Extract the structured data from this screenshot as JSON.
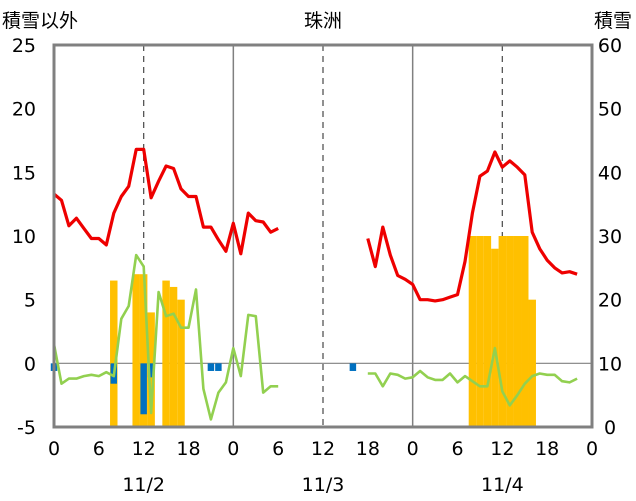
{
  "chart_data": {
    "type": "combo",
    "title": "珠洲",
    "left_axis_label": "積雪以外",
    "right_axis_label": "積雪",
    "left_ylim": [
      -5,
      25
    ],
    "left_yticks": [
      "25",
      "20",
      "15",
      "10",
      "5",
      "0",
      "-5"
    ],
    "right_ylim": [
      0,
      60
    ],
    "right_yticks": [
      "60",
      "50",
      "40",
      "30",
      "20",
      "10",
      "0"
    ],
    "x_range_hours": [
      0,
      72
    ],
    "x_tick_labels": [
      "0",
      "6",
      "12",
      "18",
      "0",
      "6",
      "12",
      "18",
      "0",
      "6",
      "12",
      "18",
      "0"
    ],
    "date_labels": [
      "11/2",
      "11/3",
      "11/4"
    ],
    "grid": "dashed at 12:00, solid at midnight",
    "colors": {
      "red_line": "#ee0000",
      "green_line": "#92d050",
      "yellow_bars": "#ffc000",
      "blue_bars": "#0070c0",
      "frame": "#808080"
    },
    "red_line": [
      [
        0,
        13.3
      ],
      [
        1,
        12.8
      ],
      [
        2,
        10.8
      ],
      [
        3,
        11.4
      ],
      [
        4,
        10.6
      ],
      [
        5,
        9.8
      ],
      [
        6,
        9.8
      ],
      [
        7,
        9.3
      ],
      [
        8,
        11.8
      ],
      [
        9,
        13.1
      ],
      [
        10,
        13.9
      ],
      [
        11,
        16.8
      ],
      [
        12,
        16.8
      ],
      [
        13,
        13.0
      ],
      [
        14,
        14.3
      ],
      [
        15,
        15.5
      ],
      [
        16,
        15.3
      ],
      [
        17,
        13.7
      ],
      [
        18,
        13.1
      ],
      [
        19,
        13.1
      ],
      [
        20,
        10.7
      ],
      [
        21,
        10.7
      ],
      [
        22,
        9.7
      ],
      [
        23,
        8.8
      ],
      [
        24,
        11.0
      ],
      [
        25,
        8.6
      ],
      [
        26,
        11.8
      ],
      [
        27,
        11.2
      ],
      [
        28,
        11.1
      ],
      [
        29,
        10.3
      ],
      [
        30,
        10.6
      ],
      null,
      [
        42,
        9.8
      ],
      [
        43,
        7.6
      ],
      [
        44,
        10.7
      ],
      [
        45,
        8.5
      ],
      [
        46,
        6.9
      ],
      [
        47,
        6.6
      ],
      [
        48,
        6.2
      ],
      [
        49,
        5.0
      ],
      [
        50,
        5.0
      ],
      [
        51,
        4.9
      ],
      [
        52,
        5.0
      ],
      [
        53,
        5.2
      ],
      [
        54,
        5.4
      ],
      [
        55,
        8.0
      ],
      [
        56,
        11.8
      ],
      [
        57,
        14.7
      ],
      [
        58,
        15.1
      ],
      [
        59,
        16.6
      ],
      [
        60,
        15.4
      ],
      [
        61,
        15.9
      ],
      [
        62,
        15.4
      ],
      [
        63,
        14.8
      ],
      [
        64,
        10.3
      ],
      [
        65,
        9.0
      ],
      [
        66,
        8.1
      ],
      [
        67,
        7.5
      ],
      [
        68,
        7.1
      ],
      [
        69,
        7.2
      ],
      [
        70,
        7.0
      ]
    ],
    "green_line": [
      [
        0,
        1.5
      ],
      [
        1,
        -1.6
      ],
      [
        2,
        -1.2
      ],
      [
        3,
        -1.2
      ],
      [
        4,
        -1.0
      ],
      [
        5,
        -0.9
      ],
      [
        6,
        -1.0
      ],
      [
        7,
        -0.7
      ],
      [
        8,
        -1.0
      ],
      [
        9,
        3.5
      ],
      [
        10,
        4.5
      ],
      [
        11,
        8.5
      ],
      [
        12,
        7.6
      ],
      [
        13,
        -3.9
      ],
      [
        14,
        5.6
      ],
      [
        15,
        3.7
      ],
      [
        16,
        3.9
      ],
      [
        17,
        2.8
      ],
      [
        18,
        2.8
      ],
      [
        19,
        5.8
      ],
      [
        20,
        -2.0
      ],
      [
        21,
        -4.4
      ],
      [
        22,
        -2.3
      ],
      [
        23,
        -1.5
      ],
      [
        24,
        1.2
      ],
      [
        25,
        -1.0
      ],
      [
        26,
        3.8
      ],
      [
        27,
        3.7
      ],
      [
        28,
        -2.3
      ],
      [
        29,
        -1.8
      ],
      [
        30,
        -1.8
      ],
      null,
      [
        42,
        -0.8
      ],
      [
        43,
        -0.8
      ],
      [
        44,
        -1.8
      ],
      [
        45,
        -0.8
      ],
      [
        46,
        -0.9
      ],
      [
        47,
        -1.2
      ],
      [
        48,
        -1.1
      ],
      [
        49,
        -0.6
      ],
      [
        50,
        -1.1
      ],
      [
        51,
        -1.3
      ],
      [
        52,
        -1.3
      ],
      [
        53,
        -0.8
      ],
      [
        54,
        -1.5
      ],
      [
        55,
        -1.0
      ],
      [
        56,
        -1.4
      ],
      [
        57,
        -1.8
      ],
      [
        58,
        -1.8
      ],
      [
        59,
        1.2
      ],
      [
        60,
        -2.2
      ],
      [
        61,
        -3.3
      ],
      [
        62,
        -2.5
      ],
      [
        63,
        -1.6
      ],
      [
        64,
        -1.0
      ],
      [
        65,
        -0.8
      ],
      [
        66,
        -0.9
      ],
      [
        67,
        -0.9
      ],
      [
        68,
        -1.4
      ],
      [
        69,
        -1.5
      ],
      [
        70,
        -1.2
      ]
    ],
    "yellow_bars_right_axis": [
      [
        8,
        23
      ],
      [
        11,
        24
      ],
      [
        12,
        24
      ],
      [
        13,
        18
      ],
      [
        15,
        23
      ],
      [
        16,
        22
      ],
      [
        17,
        20
      ],
      [
        56,
        30
      ],
      [
        57,
        30
      ],
      [
        58,
        30
      ],
      [
        59,
        28
      ],
      [
        60,
        30
      ],
      [
        61,
        30
      ],
      [
        62,
        30
      ],
      [
        63,
        30
      ],
      [
        64,
        20
      ]
    ],
    "blue_bars_left_axis": [
      [
        0,
        -0.6
      ],
      [
        8,
        -1.6
      ],
      [
        12,
        -4.0
      ],
      [
        13,
        -1.1
      ],
      [
        21,
        -0.6
      ],
      [
        22,
        -0.6
      ],
      [
        40,
        -0.6
      ]
    ]
  }
}
